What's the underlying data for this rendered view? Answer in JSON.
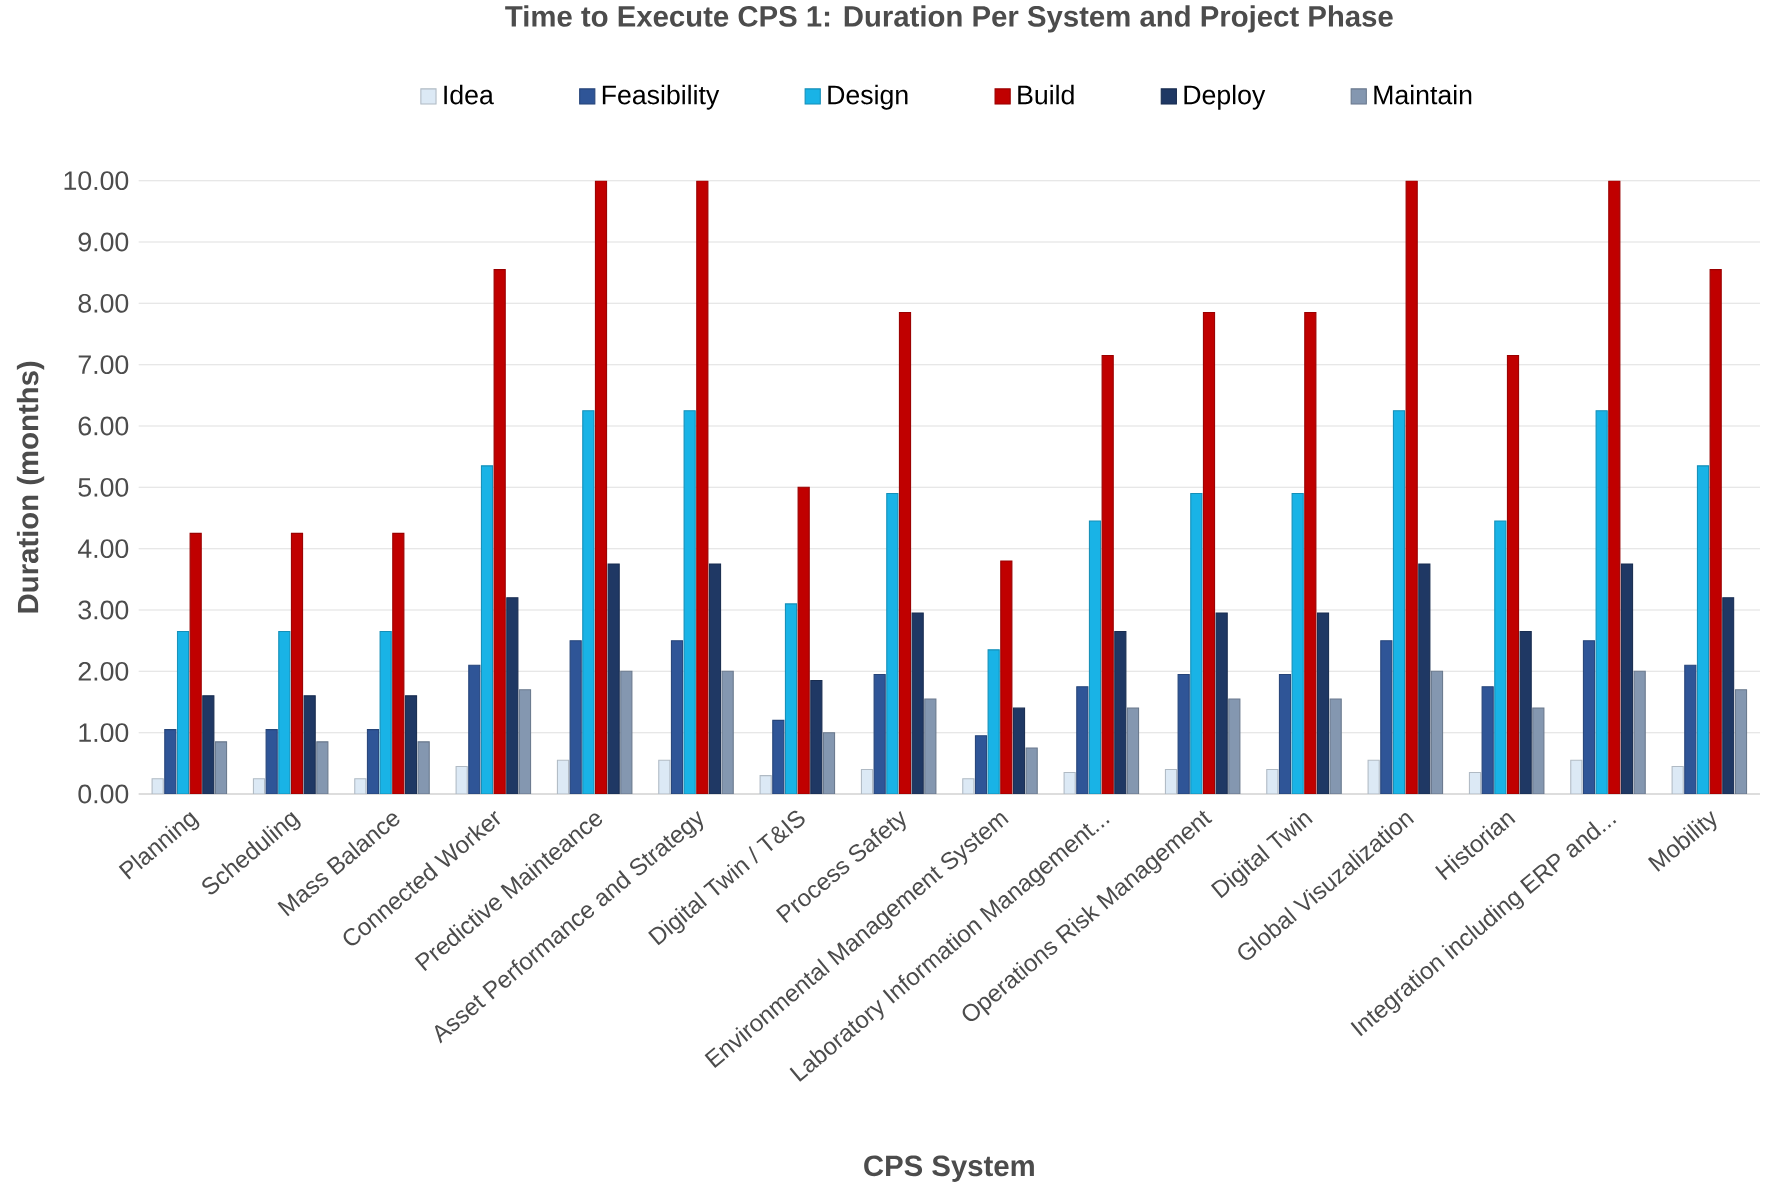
{
  "chart_data": {
    "type": "bar",
    "title": "Time to Execute CPS 1: Duration Per System and Project Phase",
    "xlabel": "CPS System",
    "ylabel": "Duration (months)",
    "categories": [
      "Planning",
      "Scheduling",
      "Mass Balance",
      "Connected Worker",
      "Predictive Mainteance",
      "Asset Performance and Strategy",
      "Digital Twin / T&IS",
      "Process Safety",
      "Environmental Management System",
      "Laboratory Information Management...",
      "Operations Risk Management",
      "Digital Twin",
      "Global Visuzalization",
      "Historian",
      "Integration including ERP and...",
      "Mobility"
    ],
    "series": [
      {
        "name": "Idea",
        "color": "#dce9f5",
        "values": [
          0.25,
          0.25,
          0.25,
          0.45,
          0.55,
          0.55,
          0.3,
          0.4,
          0.25,
          0.35,
          0.4,
          0.4,
          0.55,
          0.35,
          0.55,
          0.45
        ]
      },
      {
        "name": "Feasibility",
        "color": "#2f5597",
        "values": [
          1.05,
          1.05,
          1.05,
          2.1,
          2.5,
          2.5,
          1.2,
          1.95,
          0.95,
          1.75,
          1.95,
          1.95,
          2.5,
          1.75,
          2.5,
          2.1
        ]
      },
      {
        "name": "Design",
        "color": "#19b3e6",
        "values": [
          2.65,
          2.65,
          2.65,
          5.35,
          6.25,
          6.25,
          3.1,
          4.9,
          2.35,
          4.45,
          4.9,
          4.9,
          6.25,
          4.45,
          6.25,
          5.35
        ]
      },
      {
        "name": "Build",
        "color": "#c00000",
        "values": [
          4.25,
          4.25,
          4.25,
          8.55,
          10,
          10,
          5.0,
          7.85,
          3.8,
          7.15,
          7.85,
          7.85,
          10,
          7.15,
          10,
          8.55
        ]
      },
      {
        "name": "Deploy",
        "color": "#1f3864",
        "values": [
          1.6,
          1.6,
          1.6,
          3.2,
          3.75,
          3.75,
          1.85,
          2.95,
          1.4,
          2.65,
          2.95,
          2.95,
          3.75,
          2.65,
          3.75,
          3.2
        ]
      },
      {
        "name": "Maintain",
        "color": "#8497b0",
        "values": [
          0.85,
          0.85,
          0.85,
          1.7,
          2.0,
          2.0,
          1.0,
          1.55,
          0.75,
          1.4,
          1.55,
          1.55,
          2.0,
          1.4,
          2.0,
          1.7
        ]
      }
    ],
    "ylim": [
      0,
      10
    ],
    "yticks": [
      {
        "value": 0,
        "label": "0.00"
      },
      {
        "value": 1,
        "label": "1.00"
      },
      {
        "value": 2,
        "label": "2.00"
      },
      {
        "value": 3,
        "label": "3.00"
      },
      {
        "value": 4,
        "label": "4.00"
      },
      {
        "value": 5,
        "label": "5.00"
      },
      {
        "value": 6,
        "label": "6.00"
      },
      {
        "value": 7,
        "label": "7.00"
      },
      {
        "value": 8,
        "label": "8.00"
      },
      {
        "value": 9,
        "label": "9.00"
      },
      {
        "value": 10,
        "label": "10.00"
      }
    ],
    "grid": "y",
    "legend": "top"
  }
}
